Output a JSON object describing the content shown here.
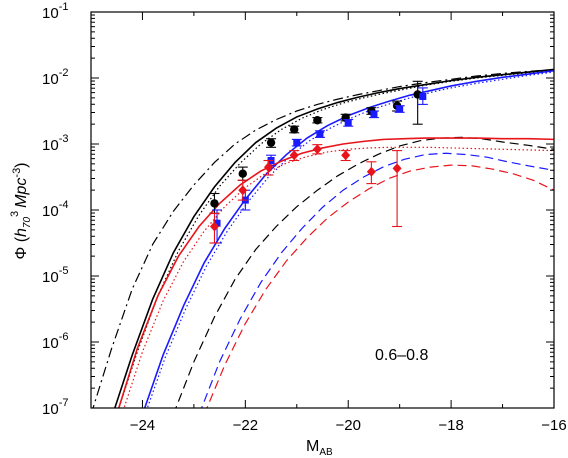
{
  "chart_data": {
    "type": "line",
    "annotation": "0.6–0.8",
    "xlabel": {
      "main": "M",
      "sub": "AB"
    },
    "ylabel": {
      "phi": "Φ",
      "open": "(",
      "h": "h",
      "h_sub": "70",
      "h_sup": "3",
      "unit": "Mpc",
      "unit_sup": "-3",
      "close": ")"
    },
    "xlim": [
      -25,
      -16
    ],
    "ylim_log10": [
      -7,
      -1
    ],
    "y_scale": "log",
    "grid": false,
    "x_ticks": [
      {
        "value": -24,
        "label": "−24"
      },
      {
        "value": -22,
        "label": "−22"
      },
      {
        "value": -20,
        "label": "−20"
      },
      {
        "value": -18,
        "label": "−18"
      },
      {
        "value": -16,
        "label": "−16"
      }
    ],
    "y_ticks": [
      {
        "exp": -7,
        "base": "10",
        "sup": "-7"
      },
      {
        "exp": -6,
        "base": "10",
        "sup": "-6"
      },
      {
        "exp": -5,
        "base": "10",
        "sup": "-5"
      },
      {
        "exp": -4,
        "base": "10",
        "sup": "-4"
      },
      {
        "exp": -3,
        "base": "10",
        "sup": "-3"
      },
      {
        "exp": -2,
        "base": "10",
        "sup": "-2"
      },
      {
        "exp": -1,
        "base": "10",
        "sup": "-1"
      }
    ],
    "colors": {
      "black": "#000000",
      "blue": "#1a1aff",
      "red": "#e8141b"
    },
    "series": [
      {
        "color": "black",
        "style": "solid",
        "x": [
          -24.6,
          -24.2,
          -23.8,
          -23.4,
          -23.0,
          -22.6,
          -22.2,
          -21.8,
          -21.4,
          -21.0,
          -20.6,
          -20.2,
          -19.8,
          -19.4,
          -19.0,
          -18.5,
          -18.0,
          -17.5,
          -17.0,
          -16.5,
          -16.0
        ],
        "log_y": [
          -7.15,
          -6.2,
          -5.35,
          -4.65,
          -4.1,
          -3.65,
          -3.28,
          -2.98,
          -2.76,
          -2.59,
          -2.47,
          -2.37,
          -2.29,
          -2.22,
          -2.16,
          -2.1,
          -2.04,
          -1.99,
          -1.95,
          -1.91,
          -1.87
        ]
      },
      {
        "color": "black",
        "style": "dashdot",
        "x": [
          -25.0,
          -24.6,
          -24.2,
          -23.8,
          -23.4,
          -23.0,
          -22.6,
          -22.2,
          -21.8,
          -21.4,
          -21.0,
          -20.6,
          -20.2,
          -19.8,
          -19.4,
          -19.0,
          -18.5,
          -18.0,
          -17.5,
          -17.0,
          -16.5,
          -16.0
        ],
        "log_y": [
          -7.1,
          -6.1,
          -5.2,
          -4.52,
          -4.02,
          -3.62,
          -3.28,
          -3.0,
          -2.79,
          -2.63,
          -2.5,
          -2.4,
          -2.32,
          -2.25,
          -2.19,
          -2.13,
          -2.07,
          -2.02,
          -1.97,
          -1.93,
          -1.9,
          -1.87
        ]
      },
      {
        "color": "black",
        "style": "dotted",
        "x": [
          -24.5,
          -24.1,
          -23.7,
          -23.3,
          -22.9,
          -22.5,
          -22.1,
          -21.7,
          -21.3,
          -20.9,
          -20.5,
          -20.1,
          -19.7,
          -19.3,
          -18.9,
          -18.5,
          -18.0,
          -17.5,
          -17.0,
          -16.5,
          -16.0
        ],
        "log_y": [
          -7.1,
          -6.15,
          -5.3,
          -4.62,
          -4.08,
          -3.64,
          -3.29,
          -3.0,
          -2.78,
          -2.61,
          -2.48,
          -2.38,
          -2.3,
          -2.23,
          -2.17,
          -2.11,
          -2.05,
          -2.0,
          -1.96,
          -1.92,
          -1.88
        ]
      },
      {
        "color": "black",
        "style": "dashed",
        "x": [
          -23.4,
          -23.0,
          -22.6,
          -22.2,
          -21.8,
          -21.4,
          -21.0,
          -20.6,
          -20.2,
          -19.8,
          -19.4,
          -19.0,
          -18.6,
          -18.2,
          -17.8,
          -17.4,
          -17.0,
          -16.5,
          -16.0
        ],
        "log_y": [
          -7.1,
          -6.3,
          -5.62,
          -5.05,
          -4.6,
          -4.25,
          -3.95,
          -3.7,
          -3.48,
          -3.3,
          -3.15,
          -3.03,
          -2.95,
          -2.91,
          -2.9,
          -2.92,
          -2.97,
          -3.02,
          -3.08
        ]
      },
      {
        "color": "blue",
        "style": "solid",
        "x": [
          -24.0,
          -23.6,
          -23.2,
          -22.8,
          -22.4,
          -22.0,
          -21.6,
          -21.2,
          -20.8,
          -20.4,
          -20.0,
          -19.6,
          -19.2,
          -18.8,
          -18.4,
          -18.0,
          -17.5,
          -17.0,
          -16.5,
          -16.0
        ],
        "log_y": [
          -7.1,
          -6.2,
          -5.45,
          -4.8,
          -4.28,
          -3.84,
          -3.46,
          -3.16,
          -2.91,
          -2.72,
          -2.57,
          -2.45,
          -2.35,
          -2.26,
          -2.19,
          -2.12,
          -2.05,
          -1.99,
          -1.94,
          -1.89
        ]
      },
      {
        "color": "blue",
        "style": "dotted",
        "x": [
          -23.95,
          -23.55,
          -23.15,
          -22.75,
          -22.35,
          -21.95,
          -21.55,
          -21.15,
          -20.75,
          -20.35,
          -19.95,
          -19.55,
          -19.15,
          -18.75,
          -18.35,
          -18.0,
          -17.5,
          -17.0,
          -16.5,
          -16.0
        ],
        "log_y": [
          -7.1,
          -6.22,
          -5.48,
          -4.84,
          -4.32,
          -3.88,
          -3.5,
          -3.2,
          -2.95,
          -2.76,
          -2.61,
          -2.48,
          -2.38,
          -2.29,
          -2.21,
          -2.15,
          -2.08,
          -2.02,
          -1.96,
          -1.91
        ]
      },
      {
        "color": "blue",
        "style": "dashed",
        "x": [
          -22.9,
          -22.5,
          -22.1,
          -21.7,
          -21.3,
          -20.9,
          -20.5,
          -20.1,
          -19.7,
          -19.3,
          -18.9,
          -18.5,
          -18.1,
          -17.7,
          -17.3,
          -16.9,
          -16.5,
          -16.0
        ],
        "log_y": [
          -7.1,
          -6.3,
          -5.65,
          -5.1,
          -4.65,
          -4.28,
          -3.96,
          -3.7,
          -3.5,
          -3.34,
          -3.23,
          -3.16,
          -3.14,
          -3.16,
          -3.2,
          -3.27,
          -3.33,
          -3.4
        ]
      },
      {
        "color": "red",
        "style": "solid",
        "x": [
          -24.5,
          -24.1,
          -23.7,
          -23.3,
          -22.9,
          -22.5,
          -22.1,
          -21.7,
          -21.3,
          -20.9,
          -20.5,
          -20.1,
          -19.7,
          -19.3,
          -18.9,
          -18.5,
          -18.0,
          -17.5,
          -17.0,
          -16.5,
          -16.0
        ],
        "log_y": [
          -7.1,
          -6.1,
          -5.3,
          -4.7,
          -4.25,
          -3.9,
          -3.62,
          -3.41,
          -3.26,
          -3.14,
          -3.06,
          -3.0,
          -2.96,
          -2.93,
          -2.92,
          -2.91,
          -2.91,
          -2.91,
          -2.92,
          -2.92,
          -2.93
        ]
      },
      {
        "color": "red",
        "style": "dotted",
        "x": [
          -24.4,
          -24.0,
          -23.6,
          -23.2,
          -22.8,
          -22.4,
          -22.0,
          -21.6,
          -21.2,
          -20.8,
          -20.4,
          -20.0,
          -19.6,
          -19.2,
          -18.8,
          -18.4,
          -18.0,
          -17.5,
          -17.0,
          -16.5,
          -16.0
        ],
        "log_y": [
          -7.1,
          -6.15,
          -5.38,
          -4.78,
          -4.32,
          -3.95,
          -3.66,
          -3.44,
          -3.29,
          -3.19,
          -3.12,
          -3.08,
          -3.06,
          -3.05,
          -3.05,
          -3.05,
          -3.06,
          -3.07,
          -3.08,
          -3.09,
          -3.1
        ]
      },
      {
        "color": "red",
        "style": "dashed",
        "x": [
          -22.8,
          -22.4,
          -22.0,
          -21.6,
          -21.2,
          -20.8,
          -20.4,
          -20.0,
          -19.6,
          -19.2,
          -18.8,
          -18.4,
          -18.0,
          -17.6,
          -17.2,
          -16.8,
          -16.4,
          -16.0
        ],
        "log_y": [
          -7.1,
          -6.35,
          -5.72,
          -5.2,
          -4.77,
          -4.42,
          -4.12,
          -3.88,
          -3.68,
          -3.52,
          -3.41,
          -3.35,
          -3.32,
          -3.33,
          -3.38,
          -3.45,
          -3.55,
          -3.7
        ]
      }
    ],
    "points": [
      {
        "color": "black",
        "marker": "circle",
        "data": [
          {
            "x": -22.6,
            "log_y": -3.9,
            "err_lo": -4.05,
            "err_hi": -3.75
          },
          {
            "x": -22.05,
            "log_y": -3.45,
            "err_lo": -3.55,
            "err_hi": -3.35
          },
          {
            "x": -21.5,
            "log_y": -2.98,
            "err_lo": -3.05,
            "err_hi": -2.92
          },
          {
            "x": -21.05,
            "log_y": -2.78,
            "err_lo": -2.83,
            "err_hi": -2.73
          },
          {
            "x": -20.6,
            "log_y": -2.64,
            "err_lo": -2.68,
            "err_hi": -2.6
          },
          {
            "x": -20.05,
            "log_y": -2.6,
            "err_lo": -2.65,
            "err_hi": -2.55
          },
          {
            "x": -19.55,
            "log_y": -2.5,
            "err_lo": -2.55,
            "err_hi": -2.45
          },
          {
            "x": -19.05,
            "log_y": -2.42,
            "err_lo": -2.5,
            "err_hi": -2.35
          },
          {
            "x": -18.65,
            "log_y": -2.25,
            "err_lo": -2.7,
            "err_hi": -2.05
          }
        ]
      },
      {
        "color": "blue",
        "marker": "square",
        "data": [
          {
            "x": -22.55,
            "log_y": -4.2,
            "err_lo": -4.5,
            "err_hi": -4.0
          },
          {
            "x": -22.0,
            "log_y": -3.85,
            "err_lo": -4.0,
            "err_hi": -3.7
          },
          {
            "x": -21.5,
            "log_y": -3.25,
            "err_lo": -3.33,
            "err_hi": -3.17
          },
          {
            "x": -21.0,
            "log_y": -2.98,
            "err_lo": -3.03,
            "err_hi": -2.93
          },
          {
            "x": -20.55,
            "log_y": -2.85,
            "err_lo": -2.9,
            "err_hi": -2.8
          },
          {
            "x": -20.0,
            "log_y": -2.68,
            "err_lo": -2.73,
            "err_hi": -2.63
          },
          {
            "x": -19.5,
            "log_y": -2.55,
            "err_lo": -2.6,
            "err_hi": -2.5
          },
          {
            "x": -19.0,
            "log_y": -2.47,
            "err_lo": -2.52,
            "err_hi": -2.42
          },
          {
            "x": -18.55,
            "log_y": -2.28,
            "err_lo": -2.4,
            "err_hi": -2.15
          }
        ]
      },
      {
        "color": "red",
        "marker": "diamond",
        "data": [
          {
            "x": -22.6,
            "log_y": -4.25,
            "err_lo": -4.5,
            "err_hi": -4.05
          },
          {
            "x": -22.05,
            "log_y": -3.7,
            "err_lo": -3.85,
            "err_hi": -3.55
          },
          {
            "x": -21.55,
            "log_y": -3.35,
            "err_lo": -3.47,
            "err_hi": -3.25
          },
          {
            "x": -21.05,
            "log_y": -3.17,
            "err_lo": -3.25,
            "err_hi": -3.1
          },
          {
            "x": -20.6,
            "log_y": -3.08,
            "err_lo": -3.15,
            "err_hi": -3.01
          },
          {
            "x": -20.05,
            "log_y": -3.17,
            "err_lo": -3.25,
            "err_hi": -3.1
          },
          {
            "x": -19.55,
            "log_y": -3.42,
            "err_lo": -3.6,
            "err_hi": -3.27
          },
          {
            "x": -19.05,
            "log_y": -3.37,
            "err_lo": -4.25,
            "err_hi": -3.1
          }
        ]
      }
    ]
  }
}
